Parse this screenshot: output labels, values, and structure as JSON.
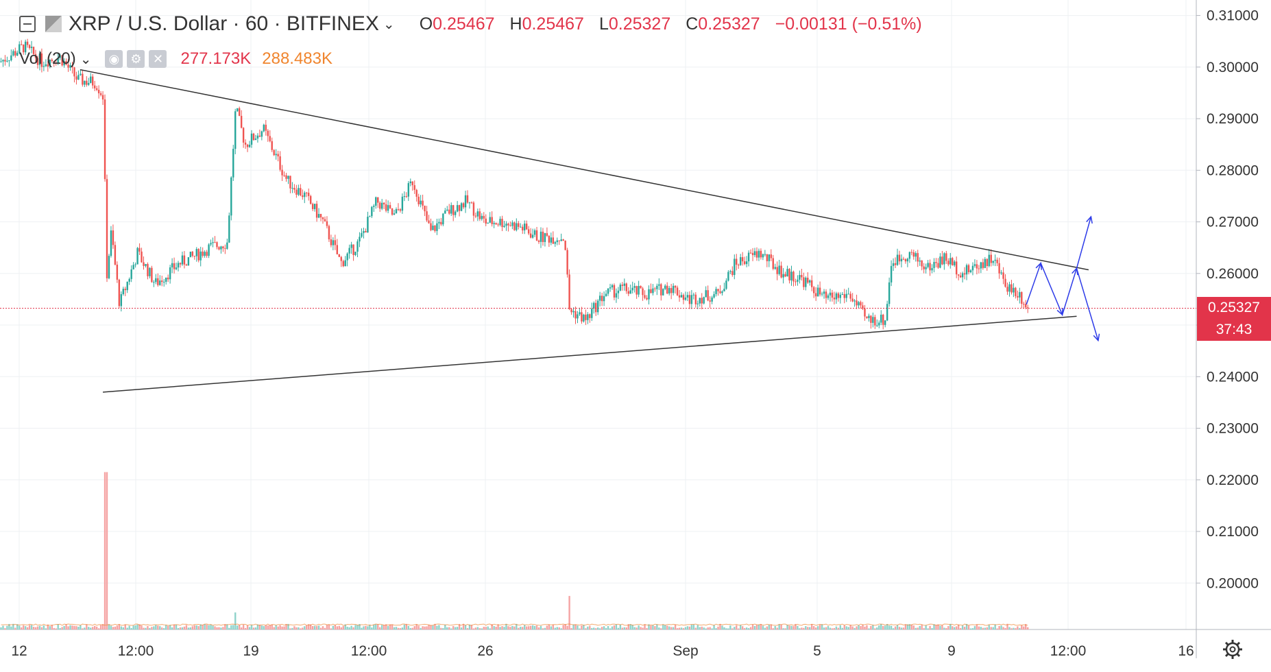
{
  "header": {
    "symbol": "XRP / U.S. Dollar",
    "interval": "60",
    "exchange": "BITFINEX",
    "ohlc": {
      "o_label": "O",
      "o": "0.25467",
      "h_label": "H",
      "h": "0.25467",
      "l_label": "L",
      "l": "0.25327",
      "c_label": "C",
      "c": "0.25327",
      "change": "−0.00131 (−0.51%)"
    },
    "volume": {
      "label": "Vol (20)",
      "value": "277.173K",
      "ma": "288.483K"
    }
  },
  "price_tag": {
    "price": "0.25327",
    "countdown": "37:43"
  },
  "colors": {
    "up": "#26a69a",
    "down": "#ef5350",
    "grid": "#eef0f3",
    "axis_text": "#333333",
    "tag": "#e2344a",
    "projection": "#2d3be8",
    "trendline": "#333333"
  },
  "chart_data": {
    "type": "candlestick",
    "title": "XRP / U.S. Dollar",
    "timeframe": "60",
    "ylim": [
      0.191,
      0.313
    ],
    "y_ticks": [
      "0.31000",
      "0.30000",
      "0.29000",
      "0.28000",
      "0.27000",
      "0.26000",
      "0.25000",
      "0.24000",
      "0.23000",
      "0.22000",
      "0.21000",
      "0.20000"
    ],
    "x_ticks": [
      "12",
      "12:00",
      "19",
      "12:00",
      "26",
      "Sep",
      "5",
      "9",
      "12:00",
      "16"
    ],
    "last_price": 0.25327,
    "price_path": [
      {
        "t": 0,
        "p": 0.301
      },
      {
        "t": 0.02,
        "p": 0.304
      },
      {
        "t": 0.035,
        "p": 0.301
      },
      {
        "t": 0.05,
        "p": 0.302
      },
      {
        "t": 0.065,
        "p": 0.2975
      },
      {
        "t": 0.08,
        "p": 0.297
      },
      {
        "t": 0.087,
        "p": 0.294
      },
      {
        "t": 0.0885,
        "p": 0.258
      },
      {
        "t": 0.093,
        "p": 0.268
      },
      {
        "t": 0.1,
        "p": 0.254
      },
      {
        "t": 0.115,
        "p": 0.264
      },
      {
        "t": 0.13,
        "p": 0.258
      },
      {
        "t": 0.15,
        "p": 0.262
      },
      {
        "t": 0.16,
        "p": 0.263
      },
      {
        "t": 0.175,
        "p": 0.265
      },
      {
        "t": 0.19,
        "p": 0.266
      },
      {
        "t": 0.197,
        "p": 0.292
      },
      {
        "t": 0.205,
        "p": 0.285
      },
      {
        "t": 0.22,
        "p": 0.288
      },
      {
        "t": 0.24,
        "p": 0.278
      },
      {
        "t": 0.255,
        "p": 0.275
      },
      {
        "t": 0.27,
        "p": 0.27
      },
      {
        "t": 0.285,
        "p": 0.262
      },
      {
        "t": 0.3,
        "p": 0.266
      },
      {
        "t": 0.315,
        "p": 0.274
      },
      {
        "t": 0.33,
        "p": 0.271
      },
      {
        "t": 0.345,
        "p": 0.278
      },
      {
        "t": 0.36,
        "p": 0.268
      },
      {
        "t": 0.375,
        "p": 0.272
      },
      {
        "t": 0.39,
        "p": 0.274
      },
      {
        "t": 0.405,
        "p": 0.27
      },
      {
        "t": 0.42,
        "p": 0.27
      },
      {
        "t": 0.435,
        "p": 0.269
      },
      {
        "t": 0.45,
        "p": 0.267
      },
      {
        "t": 0.472,
        "p": 0.267
      },
      {
        "t": 0.476,
        "p": 0.253
      },
      {
        "t": 0.49,
        "p": 0.251
      },
      {
        "t": 0.505,
        "p": 0.256
      },
      {
        "t": 0.52,
        "p": 0.257
      },
      {
        "t": 0.54,
        "p": 0.256
      },
      {
        "t": 0.56,
        "p": 0.2575
      },
      {
        "t": 0.575,
        "p": 0.255
      },
      {
        "t": 0.6,
        "p": 0.256
      },
      {
        "t": 0.615,
        "p": 0.262
      },
      {
        "t": 0.635,
        "p": 0.264
      },
      {
        "t": 0.655,
        "p": 0.26
      },
      {
        "t": 0.67,
        "p": 0.259
      },
      {
        "t": 0.69,
        "p": 0.255
      },
      {
        "t": 0.71,
        "p": 0.256
      },
      {
        "t": 0.724,
        "p": 0.251
      },
      {
        "t": 0.74,
        "p": 0.251
      },
      {
        "t": 0.745,
        "p": 0.262
      },
      {
        "t": 0.76,
        "p": 0.264
      },
      {
        "t": 0.775,
        "p": 0.261
      },
      {
        "t": 0.79,
        "p": 0.263
      },
      {
        "t": 0.805,
        "p": 0.26
      },
      {
        "t": 0.82,
        "p": 0.262
      },
      {
        "t": 0.83,
        "p": 0.263
      },
      {
        "t": 0.84,
        "p": 0.258
      },
      {
        "t": 0.852,
        "p": 0.256
      },
      {
        "t": 0.86,
        "p": 0.2533
      }
    ],
    "volume_spikes": [
      {
        "t": 0.0885,
        "v": 0.0305
      },
      {
        "t": 0.476,
        "v": 0.0065
      },
      {
        "t": 0.197,
        "v": 0.0033
      }
    ],
    "trendlines": [
      {
        "name": "upper",
        "from": {
          "t": 0.067,
          "p": 0.2995
        },
        "to": {
          "t": 0.91,
          "p": 0.2607
        }
      },
      {
        "name": "lower",
        "from": {
          "t": 0.086,
          "p": 0.237
        },
        "to": {
          "t": 0.9,
          "p": 0.2517
        }
      }
    ],
    "projection_path": [
      {
        "t": 0.858,
        "p": 0.254
      },
      {
        "t": 0.87,
        "p": 0.262
      },
      {
        "t": 0.888,
        "p": 0.252
      },
      {
        "t": 0.9,
        "p": 0.261
      },
      {
        "t": 0.912,
        "p": 0.271
      }
    ],
    "projection_branch": [
      {
        "t": 0.9,
        "p": 0.261
      },
      {
        "t": 0.918,
        "p": 0.247
      }
    ]
  }
}
